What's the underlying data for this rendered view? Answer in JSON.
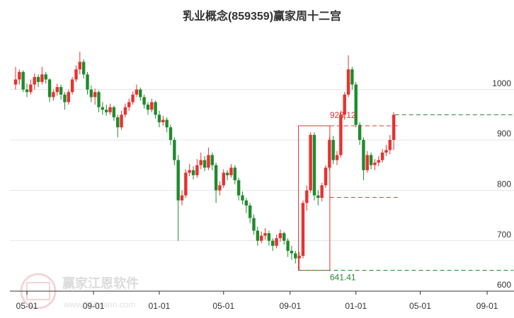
{
  "chart_data": {
    "type": "candlestick",
    "title": "乳业概念(859359)赢家周十二宫",
    "watermark": {
      "brand": "赢家江恩软件",
      "site": "www.360gann.com"
    },
    "up_color": "#e8312f",
    "down_color": "#1f8b2c",
    "grid": true,
    "xlim": [
      -4.5,
      128.8
    ],
    "ylim": [
      600,
      1130
    ],
    "xticks": [
      {
        "value": 0,
        "label": "05-01"
      },
      {
        "value": 17.6,
        "label": "09-01"
      },
      {
        "value": 35,
        "label": "01-01"
      },
      {
        "value": 52,
        "label": "05-01"
      },
      {
        "value": 69.6,
        "label": "09-01"
      },
      {
        "value": 87,
        "label": "01-01"
      },
      {
        "value": 104,
        "label": "05-01"
      },
      {
        "value": 121.7,
        "label": "09-01"
      }
    ],
    "yticks": [
      600,
      700,
      800,
      900,
      1000
    ],
    "box": {
      "x": [
        71.8,
        80.1
      ],
      "y": [
        641.41,
        928.12
      ],
      "color": "#e8312f"
    },
    "levels": [
      {
        "value": 928.12,
        "color": "#e8312f",
        "x": [
          80.1,
          98.5
        ],
        "labeled": true
      },
      {
        "value": 786,
        "color": "#e8312f",
        "x": [
          80.1,
          98.5
        ],
        "labeled": false
      },
      {
        "value": 950,
        "color": "#1f8b2c",
        "x": [
          97.3,
          128.6
        ],
        "labeled": false
      },
      {
        "value": 641.41,
        "color": "#1f8b2c",
        "x": [
          71.8,
          128.6
        ],
        "labeled": true
      }
    ],
    "x": [
      -3,
      -2,
      -1,
      0,
      1,
      2,
      3,
      4,
      5,
      6,
      7,
      8,
      9,
      10,
      11,
      12,
      13,
      14,
      15,
      16,
      17,
      18,
      19,
      20,
      21,
      22,
      23,
      24,
      25,
      26,
      27,
      28,
      29,
      30,
      31,
      32,
      33,
      34,
      35,
      36,
      37,
      38,
      39,
      40,
      41,
      42,
      43,
      44,
      45,
      46,
      47,
      48,
      49,
      50,
      51,
      52,
      53,
      54,
      55,
      56,
      57,
      58,
      59,
      60,
      61,
      62,
      63,
      64,
      65,
      66,
      67,
      68,
      69,
      70,
      71,
      72,
      73,
      74,
      75,
      76,
      77,
      78,
      79,
      80,
      81,
      82,
      83,
      84,
      85,
      86,
      87,
      88,
      89,
      90,
      91,
      92,
      93,
      94,
      95,
      96,
      97
    ],
    "ohlc": [
      [
        1010,
        1045,
        1000,
        1020
      ],
      [
        1020,
        1040,
        1010,
        1035
      ],
      [
        1035,
        1038,
        995,
        1000
      ],
      [
        1000,
        1012,
        985,
        995
      ],
      [
        995,
        1020,
        990,
        1010
      ],
      [
        1010,
        1032,
        1000,
        1025
      ],
      [
        1025,
        1030,
        1005,
        1015
      ],
      [
        1015,
        1045,
        1010,
        1030
      ],
      [
        1030,
        1035,
        1012,
        1020
      ],
      [
        1020,
        1022,
        975,
        985
      ],
      [
        985,
        1000,
        978,
        995
      ],
      [
        995,
        1012,
        988,
        1005
      ],
      [
        1005,
        1010,
        980,
        990
      ],
      [
        990,
        995,
        960,
        975
      ],
      [
        975,
        1000,
        970,
        995
      ],
      [
        995,
        1025,
        990,
        1020
      ],
      [
        1020,
        1048,
        1015,
        1040
      ],
      [
        1040,
        1075,
        1030,
        1055
      ],
      [
        1055,
        1060,
        1022,
        1030
      ],
      [
        1030,
        1035,
        990,
        1000
      ],
      [
        1000,
        1008,
        975,
        985
      ],
      [
        985,
        1002,
        970,
        995
      ],
      [
        995,
        998,
        955,
        965
      ],
      [
        965,
        975,
        950,
        960
      ],
      [
        960,
        970,
        948,
        955
      ],
      [
        955,
        972,
        950,
        965
      ],
      [
        965,
        968,
        938,
        945
      ],
      [
        945,
        950,
        905,
        925
      ],
      [
        925,
        958,
        920,
        950
      ],
      [
        950,
        972,
        945,
        965
      ],
      [
        965,
        982,
        958,
        975
      ],
      [
        975,
        996,
        970,
        990
      ],
      [
        990,
        1010,
        985,
        1000
      ],
      [
        1000,
        1004,
        978,
        985
      ],
      [
        985,
        990,
        962,
        970
      ],
      [
        970,
        975,
        950,
        960
      ],
      [
        960,
        982,
        955,
        975
      ],
      [
        975,
        978,
        942,
        950
      ],
      [
        950,
        958,
        925,
        935
      ],
      [
        935,
        948,
        928,
        940
      ],
      [
        940,
        945,
        915,
        925
      ],
      [
        925,
        930,
        890,
        900
      ],
      [
        900,
        905,
        850,
        860
      ],
      [
        860,
        870,
        700,
        780
      ],
      [
        780,
        800,
        770,
        790
      ],
      [
        790,
        842,
        785,
        835
      ],
      [
        835,
        852,
        828,
        840
      ],
      [
        840,
        848,
        822,
        830
      ],
      [
        830,
        862,
        825,
        850
      ],
      [
        850,
        875,
        842,
        860
      ],
      [
        860,
        868,
        838,
        845
      ],
      [
        845,
        885,
        840,
        870
      ],
      [
        870,
        875,
        840,
        850
      ],
      [
        850,
        855,
        775,
        800
      ],
      [
        800,
        818,
        790,
        810
      ],
      [
        810,
        842,
        805,
        835
      ],
      [
        835,
        840,
        820,
        830
      ],
      [
        830,
        852,
        825,
        845
      ],
      [
        845,
        850,
        812,
        820
      ],
      [
        820,
        825,
        780,
        790
      ],
      [
        790,
        798,
        772,
        780
      ],
      [
        780,
        785,
        755,
        770
      ],
      [
        770,
        775,
        735,
        745
      ],
      [
        745,
        752,
        712,
        720
      ],
      [
        720,
        728,
        690,
        700
      ],
      [
        700,
        718,
        695,
        710
      ],
      [
        710,
        725,
        702,
        715
      ],
      [
        715,
        720,
        690,
        700
      ],
      [
        700,
        705,
        680,
        690
      ],
      [
        690,
        712,
        685,
        705
      ],
      [
        705,
        722,
        698,
        715
      ],
      [
        715,
        718,
        692,
        700
      ],
      [
        700,
        705,
        668,
        680
      ],
      [
        680,
        690,
        662,
        675
      ],
      [
        675,
        680,
        655,
        665
      ],
      [
        665,
        678,
        641,
        670
      ],
      [
        670,
        780,
        665,
        775
      ],
      [
        775,
        810,
        760,
        800
      ],
      [
        800,
        915,
        795,
        910
      ],
      [
        910,
        915,
        780,
        790
      ],
      [
        790,
        800,
        770,
        785
      ],
      [
        785,
        815,
        778,
        810
      ],
      [
        810,
        850,
        805,
        845
      ],
      [
        845,
        905,
        840,
        900
      ],
      [
        900,
        908,
        852,
        860
      ],
      [
        860,
        878,
        850,
        870
      ],
      [
        870,
        958,
        865,
        950
      ],
      [
        950,
        995,
        940,
        990
      ],
      [
        990,
        1068,
        985,
        1040
      ],
      [
        1040,
        1045,
        1000,
        1010
      ],
      [
        1010,
        1015,
        925,
        930
      ],
      [
        930,
        935,
        890,
        900
      ],
      [
        900,
        905,
        820,
        840
      ],
      [
        840,
        878,
        835,
        870
      ],
      [
        870,
        875,
        842,
        850
      ],
      [
        850,
        862,
        840,
        855
      ],
      [
        855,
        868,
        848,
        860
      ],
      [
        860,
        882,
        855,
        875
      ],
      [
        875,
        890,
        868,
        880
      ],
      [
        880,
        910,
        872,
        900
      ],
      [
        900,
        955,
        880,
        950
      ]
    ]
  }
}
